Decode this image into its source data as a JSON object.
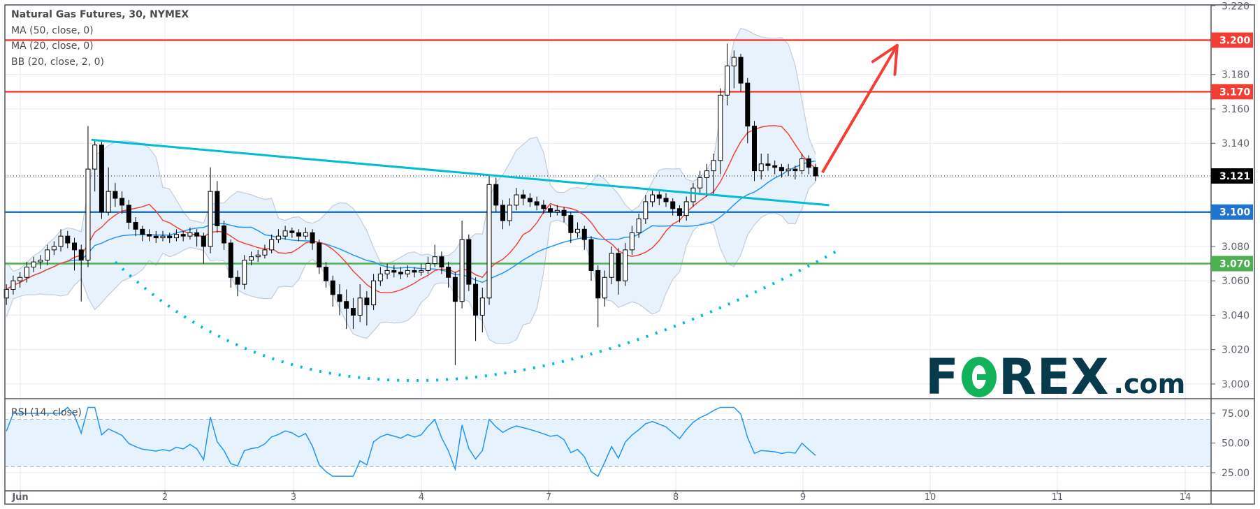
{
  "legend": {
    "title": "Natural Gas Futures, 30, NYMEX",
    "indicators": [
      "MA (50, close, 0)",
      "MA (20, close, 0)",
      "BB (20, close, 2, 0)"
    ],
    "rsi": "RSI (14, close)"
  },
  "logo": {
    "part1": "F",
    "part2": "REX",
    "suffix": ".com"
  },
  "colors": {
    "ma20": "#f44336",
    "ma50": "#2196f3",
    "bb_fill": "#e8f2fc",
    "bb_border": "#c3ccd8",
    "trendline": "#00bcd4",
    "arrow": "#f23f36",
    "rsi": "#2196f3",
    "rsi_band": "#e6f2fd",
    "candle_up": "#ffffff",
    "candle_down": "#000000",
    "logo_dark": "#073a4b",
    "logo_green": "#12b25a"
  },
  "chart_data": {
    "type": "candlestick",
    "interval": "30",
    "x_tick_labels": [
      "Jun",
      "2",
      "3",
      "4",
      "7",
      "8",
      "9",
      "10",
      "11",
      "14"
    ],
    "y_ticks": [
      "3.220",
      "3.200",
      "3.180",
      "3.160",
      "3.140",
      "3.120",
      "3.100",
      "3.080",
      "3.060",
      "3.040",
      "3.020",
      "3.000"
    ],
    "ylim": [
      2.99,
      3.225
    ],
    "grid": true,
    "current_price": {
      "value": 3.121,
      "label": "3.121",
      "color": "#000000"
    },
    "levels": [
      {
        "value": 3.2,
        "label": "3.200",
        "color": "#f23f36"
      },
      {
        "value": 3.17,
        "label": "3.170",
        "color": "#f23f36"
      },
      {
        "value": 3.1,
        "label": "3.100",
        "color": "#1f74d0"
      },
      {
        "value": 3.07,
        "label": "3.070",
        "color": "#4caf50"
      }
    ],
    "candles_ohlc": [
      [
        3.05,
        3.058,
        3.046,
        3.055
      ],
      [
        3.055,
        3.063,
        3.052,
        3.06
      ],
      [
        3.06,
        3.065,
        3.056,
        3.062
      ],
      [
        3.062,
        3.071,
        3.059,
        3.068
      ],
      [
        3.068,
        3.074,
        3.065,
        3.071
      ],
      [
        3.071,
        3.075,
        3.067,
        3.072
      ],
      [
        3.072,
        3.081,
        3.069,
        3.078
      ],
      [
        3.078,
        3.083,
        3.075,
        3.08
      ],
      [
        3.08,
        3.09,
        3.077,
        3.086
      ],
      [
        3.086,
        3.089,
        3.079,
        3.082
      ],
      [
        3.082,
        3.085,
        3.066,
        3.078
      ],
      [
        3.078,
        3.081,
        3.048,
        3.072
      ],
      [
        3.072,
        3.15,
        3.068,
        3.125
      ],
      [
        3.125,
        3.142,
        3.112,
        3.139
      ],
      [
        3.139,
        3.141,
        3.096,
        3.1
      ],
      [
        3.1,
        3.126,
        3.098,
        3.112
      ],
      [
        3.112,
        3.117,
        3.103,
        3.108
      ],
      [
        3.108,
        3.112,
        3.099,
        3.104
      ],
      [
        3.104,
        3.107,
        3.09,
        3.094
      ],
      [
        3.094,
        3.097,
        3.086,
        3.09
      ],
      [
        3.09,
        3.092,
        3.083,
        3.087
      ],
      [
        3.087,
        3.09,
        3.083,
        3.086
      ],
      [
        3.086,
        3.089,
        3.082,
        3.085
      ],
      [
        3.085,
        3.089,
        3.083,
        3.086
      ],
      [
        3.086,
        3.088,
        3.082,
        3.085
      ],
      [
        3.085,
        3.09,
        3.083,
        3.087
      ],
      [
        3.087,
        3.089,
        3.083,
        3.086
      ],
      [
        3.086,
        3.091,
        3.084,
        3.088
      ],
      [
        3.088,
        3.09,
        3.08,
        3.086
      ],
      [
        3.086,
        3.088,
        3.07,
        3.08
      ],
      [
        3.08,
        3.126,
        3.076,
        3.112
      ],
      [
        3.112,
        3.118,
        3.088,
        3.092
      ],
      [
        3.092,
        3.095,
        3.078,
        3.082
      ],
      [
        3.082,
        3.084,
        3.056,
        3.062
      ],
      [
        3.062,
        3.066,
        3.051,
        3.058
      ],
      [
        3.058,
        3.075,
        3.055,
        3.072
      ],
      [
        3.072,
        3.077,
        3.069,
        3.074
      ],
      [
        3.074,
        3.078,
        3.071,
        3.075
      ],
      [
        3.075,
        3.081,
        3.073,
        3.078
      ],
      [
        3.078,
        3.087,
        3.076,
        3.084
      ],
      [
        3.084,
        3.09,
        3.082,
        3.086
      ],
      [
        3.086,
        3.092,
        3.084,
        3.089
      ],
      [
        3.089,
        3.091,
        3.085,
        3.088
      ],
      [
        3.088,
        3.09,
        3.083,
        3.086
      ],
      [
        3.086,
        3.091,
        3.084,
        3.088
      ],
      [
        3.088,
        3.09,
        3.078,
        3.082
      ],
      [
        3.082,
        3.084,
        3.064,
        3.068
      ],
      [
        3.068,
        3.071,
        3.056,
        3.06
      ],
      [
        3.06,
        3.063,
        3.045,
        3.052
      ],
      [
        3.052,
        3.058,
        3.04,
        3.048
      ],
      [
        3.048,
        3.055,
        3.032,
        3.044
      ],
      [
        3.044,
        3.05,
        3.032,
        3.04
      ],
      [
        3.04,
        3.058,
        3.036,
        3.05
      ],
      [
        3.05,
        3.054,
        3.034,
        3.046
      ],
      [
        3.046,
        3.064,
        3.043,
        3.06
      ],
      [
        3.06,
        3.068,
        3.057,
        3.064
      ],
      [
        3.064,
        3.07,
        3.061,
        3.066
      ],
      [
        3.066,
        3.069,
        3.062,
        3.065
      ],
      [
        3.065,
        3.068,
        3.061,
        3.064
      ],
      [
        3.064,
        3.069,
        3.062,
        3.066
      ],
      [
        3.066,
        3.068,
        3.062,
        3.065
      ],
      [
        3.065,
        3.07,
        3.063,
        3.066
      ],
      [
        3.066,
        3.074,
        3.064,
        3.07
      ],
      [
        3.07,
        3.081,
        3.068,
        3.074
      ],
      [
        3.074,
        3.077,
        3.064,
        3.068
      ],
      [
        3.068,
        3.071,
        3.056,
        3.062
      ],
      [
        3.062,
        3.065,
        3.011,
        3.048
      ],
      [
        3.048,
        3.095,
        3.044,
        3.084
      ],
      [
        3.084,
        3.087,
        3.054,
        3.058
      ],
      [
        3.058,
        3.062,
        3.025,
        3.04
      ],
      [
        3.04,
        3.056,
        3.03,
        3.05
      ],
      [
        3.05,
        3.121,
        3.046,
        3.116
      ],
      [
        3.116,
        3.12,
        3.1,
        3.104
      ],
      [
        3.104,
        3.107,
        3.09,
        3.095
      ],
      [
        3.095,
        3.108,
        3.092,
        3.104
      ],
      [
        3.104,
        3.114,
        3.101,
        3.11
      ],
      [
        3.11,
        3.113,
        3.104,
        3.108
      ],
      [
        3.108,
        3.111,
        3.103,
        3.106
      ],
      [
        3.106,
        3.109,
        3.101,
        3.104
      ],
      [
        3.104,
        3.107,
        3.099,
        3.102
      ],
      [
        3.102,
        3.104,
        3.097,
        3.1
      ],
      [
        3.1,
        3.104,
        3.098,
        3.101
      ],
      [
        3.101,
        3.103,
        3.094,
        3.098
      ],
      [
        3.098,
        3.1,
        3.082,
        3.088
      ],
      [
        3.088,
        3.094,
        3.085,
        3.09
      ],
      [
        3.09,
        3.092,
        3.078,
        3.084
      ],
      [
        3.084,
        3.086,
        3.06,
        3.066
      ],
      [
        3.066,
        3.069,
        3.033,
        3.05
      ],
      [
        3.05,
        3.066,
        3.045,
        3.062
      ],
      [
        3.062,
        3.08,
        3.058,
        3.076
      ],
      [
        3.076,
        3.079,
        3.052,
        3.06
      ],
      [
        3.06,
        3.082,
        3.057,
        3.078
      ],
      [
        3.078,
        3.092,
        3.075,
        3.088
      ],
      [
        3.088,
        3.099,
        3.085,
        3.096
      ],
      [
        3.096,
        3.11,
        3.093,
        3.106
      ],
      [
        3.106,
        3.113,
        3.103,
        3.11
      ],
      [
        3.11,
        3.112,
        3.104,
        3.108
      ],
      [
        3.108,
        3.111,
        3.103,
        3.106
      ],
      [
        3.106,
        3.108,
        3.098,
        3.102
      ],
      [
        3.102,
        3.104,
        3.094,
        3.098
      ],
      [
        3.098,
        3.109,
        3.095,
        3.106
      ],
      [
        3.106,
        3.117,
        3.103,
        3.114
      ],
      [
        3.114,
        3.124,
        3.11,
        3.12
      ],
      [
        3.12,
        3.128,
        3.109,
        3.124
      ],
      [
        3.124,
        3.134,
        3.11,
        3.13
      ],
      [
        3.13,
        3.172,
        3.122,
        3.168
      ],
      [
        3.168,
        3.198,
        3.162,
        3.185
      ],
      [
        3.185,
        3.194,
        3.172,
        3.19
      ],
      [
        3.19,
        3.192,
        3.17,
        3.175
      ],
      [
        3.175,
        3.178,
        3.14,
        3.15
      ],
      [
        3.15,
        3.153,
        3.118,
        3.124
      ],
      [
        3.124,
        3.134,
        3.119,
        3.128
      ],
      [
        3.128,
        3.134,
        3.124,
        3.127
      ],
      [
        3.127,
        3.13,
        3.122,
        3.126
      ],
      [
        3.126,
        3.128,
        3.12,
        3.124
      ],
      [
        3.124,
        3.128,
        3.121,
        3.125
      ],
      [
        3.125,
        3.127,
        3.119,
        3.124
      ],
      [
        3.124,
        3.134,
        3.122,
        3.131
      ],
      [
        3.131,
        3.133,
        3.122,
        3.126
      ],
      [
        3.126,
        3.128,
        3.118,
        3.121
      ]
    ],
    "drawings": {
      "trendline": {
        "from": {
          "bar": 12.5,
          "price": 3.142
        },
        "to": {
          "bar": 121,
          "price": 3.104
        }
      },
      "dotted_arc": {
        "from": {
          "bar": 16,
          "price": 3.071
        },
        "bottom": {
          "bar": 61,
          "price": 3.002
        },
        "to": {
          "bar": 122,
          "price": 3.077
        }
      },
      "arrow": {
        "from": {
          "bar": 120,
          "price": 3.123
        },
        "to": {
          "bar": 131,
          "price": 3.197
        }
      }
    },
    "rsi": {
      "y_ticks": [
        "75.00",
        "50.00",
        "25.00"
      ],
      "upper_band": 70,
      "lower_band": 30,
      "ylim": [
        20,
        80
      ]
    }
  }
}
